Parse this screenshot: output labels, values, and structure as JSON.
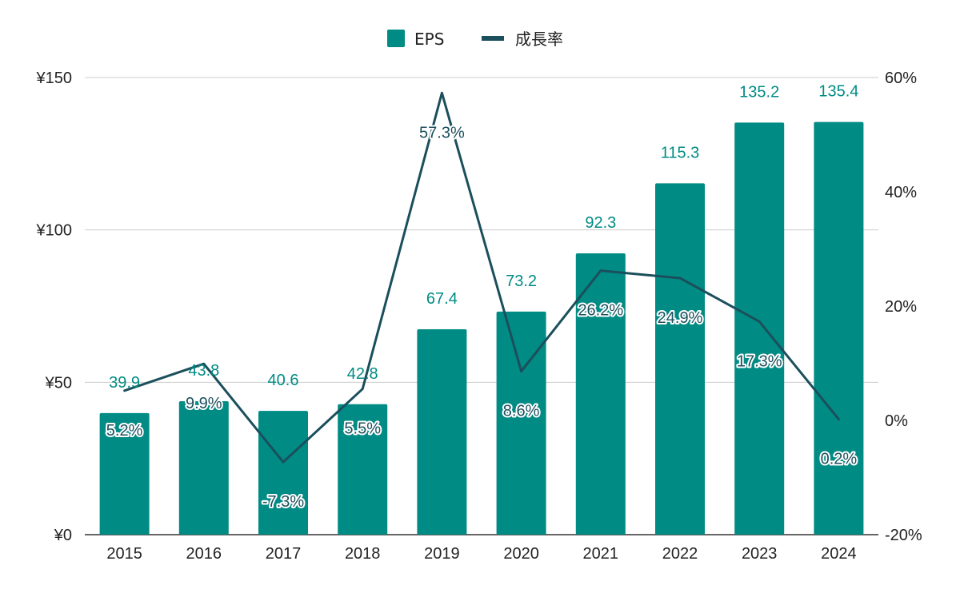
{
  "chart_data": {
    "type": "bar",
    "categories": [
      "2015",
      "2016",
      "2017",
      "2018",
      "2019",
      "2020",
      "2021",
      "2022",
      "2023",
      "2024"
    ],
    "series": [
      {
        "name": "EPS",
        "type": "bar",
        "axis": "left",
        "color": "#008B84",
        "values": [
          39.9,
          43.8,
          40.6,
          42.8,
          67.4,
          73.2,
          92.3,
          115.3,
          135.2,
          135.4
        ],
        "labels": [
          "39.9",
          "43.8",
          "40.6",
          "42.8",
          "67.4",
          "73.2",
          "92.3",
          "115.3",
          "135.2",
          "135.4"
        ]
      },
      {
        "name": "成長率",
        "type": "line",
        "axis": "right",
        "color": "#1B4F5C",
        "values": [
          5.2,
          9.9,
          -7.3,
          5.5,
          57.3,
          8.6,
          26.2,
          24.9,
          17.3,
          0.2
        ],
        "labels": [
          "5.2%",
          "9.9%",
          "-7.3%",
          "5.5%",
          "57.3%",
          "8.6%",
          "26.2%",
          "24.9%",
          "17.3%",
          "0.2%"
        ]
      }
    ],
    "y_left": {
      "min": 0,
      "max": 150,
      "ticks": [
        0,
        50,
        100,
        150
      ],
      "tick_labels": [
        "¥0",
        "¥50",
        "¥100",
        "¥150"
      ]
    },
    "y_right": {
      "min": -20,
      "max": 60,
      "ticks": [
        -20,
        0,
        20,
        40,
        60
      ],
      "tick_labels": [
        "-20%",
        "0%",
        "20%",
        "40%",
        "60%"
      ]
    },
    "legend": {
      "position": "top-center"
    },
    "grid": true
  }
}
